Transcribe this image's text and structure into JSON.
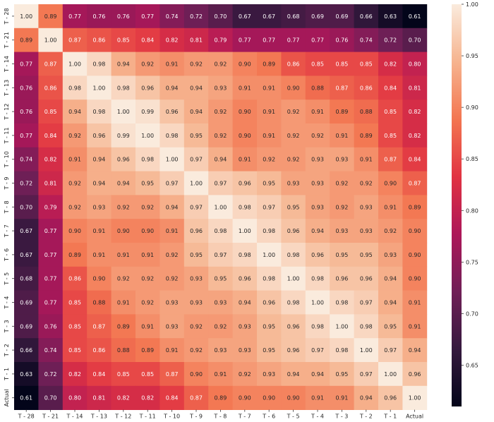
{
  "chart_data": {
    "type": "heatmap",
    "title": "",
    "xlabel": "",
    "ylabel": "",
    "x_categories": [
      "T - 28",
      "T - 21",
      "T - 14",
      "T - 13",
      "T - 12",
      "T - 11",
      "T - 10",
      "T - 9",
      "T - 8",
      "T - 7",
      "T - 6",
      "T - 5",
      "T - 4",
      "T - 3",
      "T - 2",
      "T - 1",
      "Actual"
    ],
    "y_categories": [
      "T - 28",
      "T - 21",
      "T - 14",
      "T - 13",
      "T - 12",
      "T - 11",
      "T - 10",
      "T - 9",
      "T - 8",
      "T - 7",
      "T - 6",
      "T - 5",
      "T - 4",
      "T - 3",
      "T - 2",
      "T - 1",
      "Actual"
    ],
    "values": [
      [
        1.0,
        0.89,
        0.77,
        0.76,
        0.76,
        0.77,
        0.74,
        0.72,
        0.7,
        0.67,
        0.67,
        0.68,
        0.69,
        0.69,
        0.66,
        0.63,
        0.61
      ],
      [
        0.89,
        1.0,
        0.87,
        0.86,
        0.85,
        0.84,
        0.82,
        0.81,
        0.79,
        0.77,
        0.77,
        0.77,
        0.77,
        0.76,
        0.74,
        0.72,
        0.7
      ],
      [
        0.77,
        0.87,
        1.0,
        0.98,
        0.94,
        0.92,
        0.91,
        0.92,
        0.92,
        0.9,
        0.89,
        0.86,
        0.85,
        0.85,
        0.85,
        0.82,
        0.8
      ],
      [
        0.76,
        0.86,
        0.98,
        1.0,
        0.98,
        0.96,
        0.94,
        0.94,
        0.93,
        0.91,
        0.91,
        0.9,
        0.88,
        0.87,
        0.86,
        0.84,
        0.81
      ],
      [
        0.76,
        0.85,
        0.94,
        0.98,
        1.0,
        0.99,
        0.96,
        0.94,
        0.92,
        0.9,
        0.91,
        0.92,
        0.91,
        0.89,
        0.88,
        0.85,
        0.82
      ],
      [
        0.77,
        0.84,
        0.92,
        0.96,
        0.99,
        1.0,
        0.98,
        0.95,
        0.92,
        0.9,
        0.91,
        0.92,
        0.92,
        0.91,
        0.89,
        0.85,
        0.82
      ],
      [
        0.74,
        0.82,
        0.91,
        0.94,
        0.96,
        0.98,
        1.0,
        0.97,
        0.94,
        0.91,
        0.92,
        0.92,
        0.93,
        0.93,
        0.91,
        0.87,
        0.84
      ],
      [
        0.72,
        0.81,
        0.92,
        0.94,
        0.94,
        0.95,
        0.97,
        1.0,
        0.97,
        0.96,
        0.95,
        0.93,
        0.93,
        0.92,
        0.92,
        0.9,
        0.87
      ],
      [
        0.7,
        0.79,
        0.92,
        0.93,
        0.92,
        0.92,
        0.94,
        0.97,
        1.0,
        0.98,
        0.97,
        0.95,
        0.93,
        0.92,
        0.93,
        0.91,
        0.89
      ],
      [
        0.67,
        0.77,
        0.9,
        0.91,
        0.9,
        0.9,
        0.91,
        0.96,
        0.98,
        1.0,
        0.98,
        0.96,
        0.94,
        0.93,
        0.93,
        0.92,
        0.9
      ],
      [
        0.67,
        0.77,
        0.89,
        0.91,
        0.91,
        0.91,
        0.92,
        0.95,
        0.97,
        0.98,
        1.0,
        0.98,
        0.96,
        0.95,
        0.95,
        0.93,
        0.9
      ],
      [
        0.68,
        0.77,
        0.86,
        0.9,
        0.92,
        0.92,
        0.92,
        0.93,
        0.95,
        0.96,
        0.98,
        1.0,
        0.98,
        0.96,
        0.96,
        0.94,
        0.9
      ],
      [
        0.69,
        0.77,
        0.85,
        0.88,
        0.91,
        0.92,
        0.93,
        0.93,
        0.93,
        0.94,
        0.96,
        0.98,
        1.0,
        0.98,
        0.97,
        0.94,
        0.91
      ],
      [
        0.69,
        0.76,
        0.85,
        0.87,
        0.89,
        0.91,
        0.93,
        0.92,
        0.92,
        0.93,
        0.95,
        0.96,
        0.98,
        1.0,
        0.98,
        0.95,
        0.91
      ],
      [
        0.66,
        0.74,
        0.85,
        0.86,
        0.88,
        0.89,
        0.91,
        0.92,
        0.93,
        0.93,
        0.95,
        0.96,
        0.97,
        0.98,
        1.0,
        0.97,
        0.94
      ],
      [
        0.63,
        0.72,
        0.82,
        0.84,
        0.85,
        0.85,
        0.87,
        0.9,
        0.91,
        0.92,
        0.93,
        0.94,
        0.94,
        0.95,
        0.97,
        1.0,
        0.96
      ],
      [
        0.61,
        0.7,
        0.8,
        0.81,
        0.82,
        0.82,
        0.84,
        0.87,
        0.89,
        0.9,
        0.9,
        0.9,
        0.91,
        0.91,
        0.94,
        0.96,
        1.0
      ]
    ],
    "colorbar": {
      "range": [
        0.61,
        1.0
      ],
      "ticks": [
        "1.00",
        "0.95",
        "0.90",
        "0.85",
        "0.80",
        "0.75",
        "0.70",
        "0.65"
      ],
      "colormap": "rocket",
      "colors": [
        "#03051a",
        "#35193e",
        "#701f57",
        "#ad1759",
        "#e13342",
        "#f37651",
        "#f6b48f",
        "#faebdd"
      ]
    },
    "legend": "colorbar-right",
    "grid": false
  }
}
